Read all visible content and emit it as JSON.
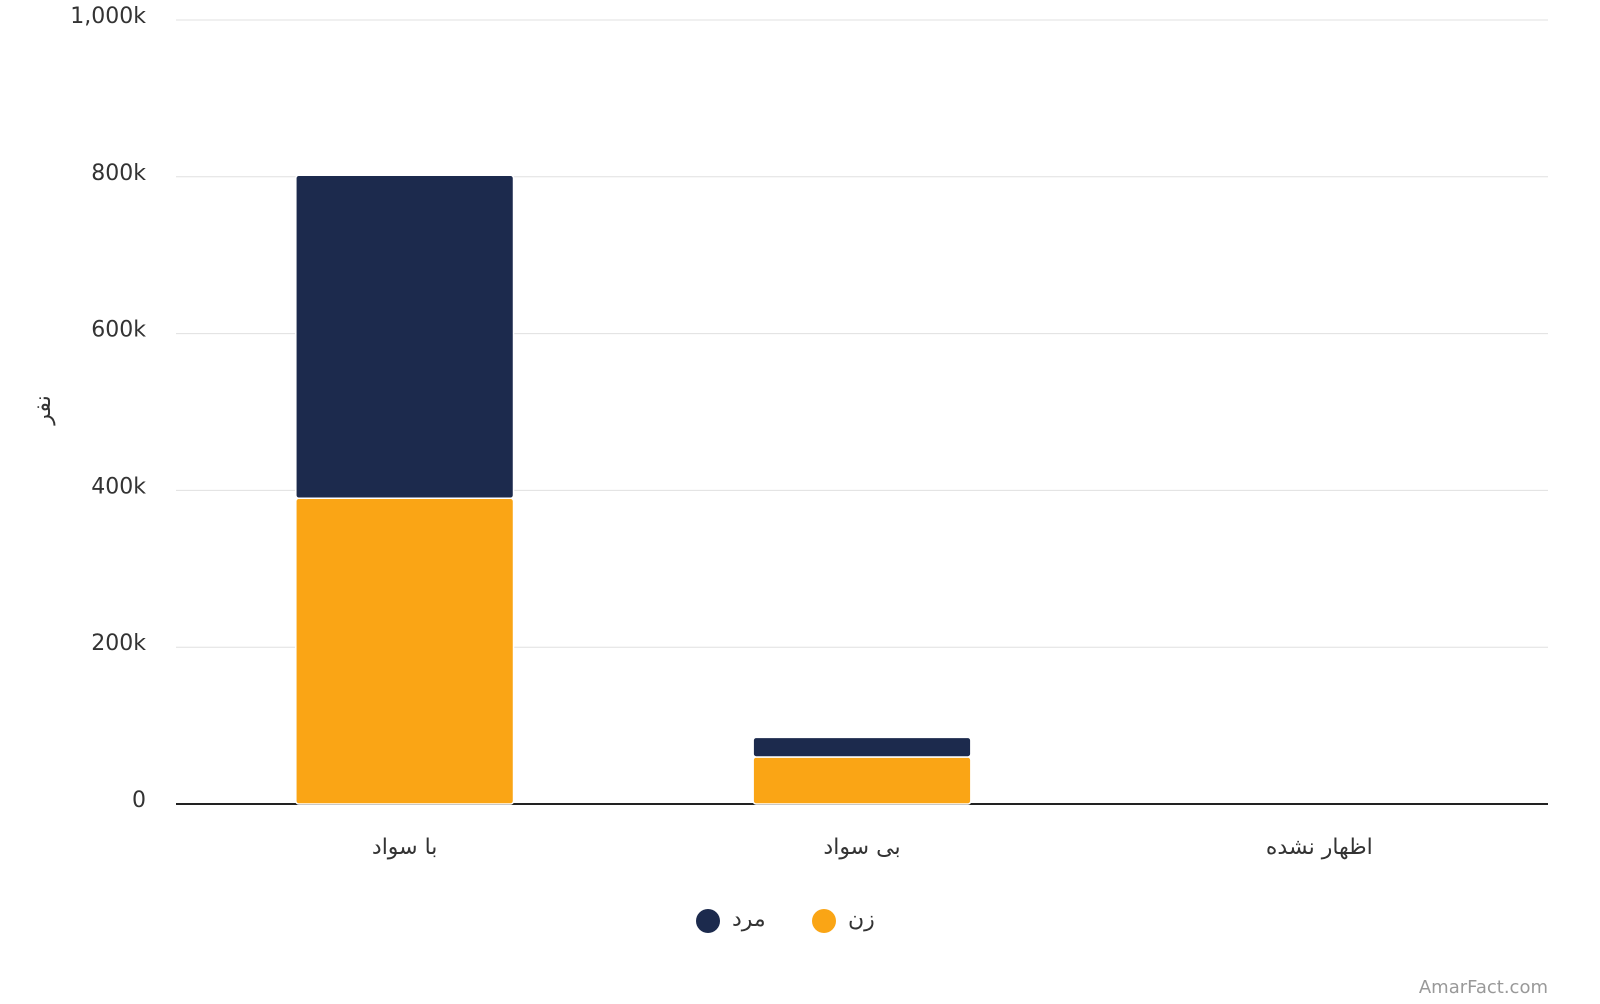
{
  "chart_data": {
    "type": "stacked-bar",
    "y_label": "نفر",
    "categories": [
      "با سواد",
      "بی سواد",
      "اظهار نشده"
    ],
    "series": [
      {
        "name": "زن",
        "color": "#faa515",
        "values": [
          390000,
          60000,
          0
        ]
      },
      {
        "name": "مرد",
        "color": "#1c2a4d",
        "values": [
          412000,
          25000,
          0
        ]
      }
    ],
    "ylim": [
      0,
      1000000
    ],
    "yticks": [
      0,
      {
        "value": 200000,
        "label": "200k"
      },
      {
        "value": 400000,
        "label": "400k"
      },
      {
        "value": 600000,
        "label": "600k"
      },
      {
        "value": 800000,
        "label": "800k"
      },
      {
        "value": 1000000,
        "label": "1,000k"
      }
    ],
    "grid": true,
    "watermark": "AmarFact.com"
  }
}
